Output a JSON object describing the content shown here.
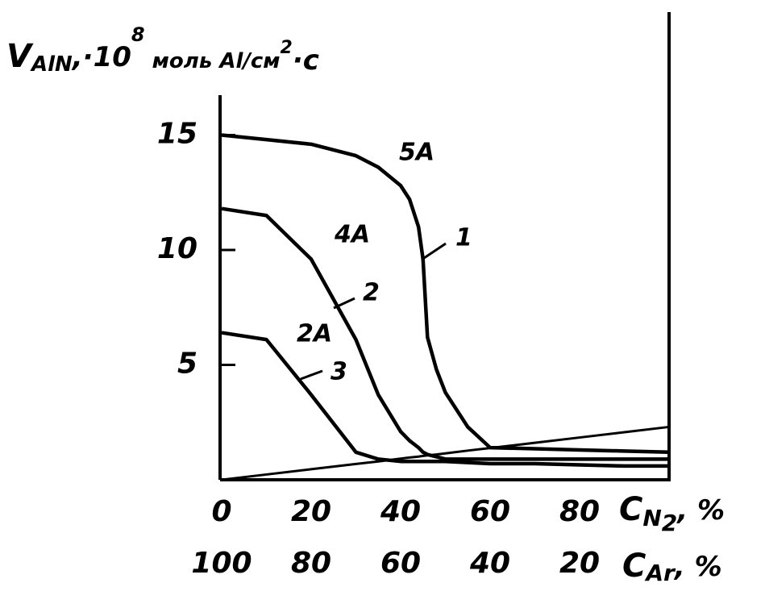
{
  "chart_data": {
    "type": "line",
    "y_label": [
      "V",
      "AlN",
      ",·10",
      "8",
      " моль Al/см",
      "2",
      "·с"
    ],
    "x_label": [
      "C",
      "N",
      "2",
      ", %"
    ],
    "x2_label": [
      "C",
      "Ar",
      ", %"
    ],
    "x": [
      0,
      10,
      20,
      30,
      35,
      40,
      42,
      44,
      45,
      46,
      48,
      50,
      55,
      60,
      70,
      80,
      90,
      100
    ],
    "series": [
      {
        "name": "1",
        "current": "5A",
        "color": "#000000",
        "values": [
          15,
          14.8,
          14.6,
          14.1,
          13.6,
          12.8,
          12.2,
          11.0,
          9.6,
          6.2,
          4.8,
          3.8,
          2.3,
          1.4,
          1.35,
          1.3,
          1.25,
          1.2
        ]
      },
      {
        "name": "2",
        "current": "4A",
        "color": "#000000",
        "values": [
          11.8,
          11.5,
          9.6,
          6.1,
          3.7,
          2.1,
          1.7,
          1.4,
          1.2,
          1.1,
          1.0,
          0.9,
          0.9,
          0.9,
          0.9,
          0.9,
          0.9,
          0.9
        ]
      },
      {
        "name": "3",
        "current": "2A",
        "color": "#000000",
        "values": [
          6.4,
          6.1,
          3.7,
          1.2,
          0.9,
          0.8,
          0.8,
          0.8,
          0.8,
          0.8,
          0.8,
          0.8,
          0.75,
          0.7,
          0.7,
          0.65,
          0.6,
          0.6
        ]
      },
      {
        "color": "#000000",
        "values": [
          0,
          0.23,
          0.46,
          0.69,
          0.8,
          0.92,
          0.97,
          1.01,
          1.04,
          1.06,
          1.1,
          1.15,
          1.27,
          1.38,
          1.61,
          1.84,
          2.07,
          2.3
        ]
      }
    ],
    "xlim": [
      0,
      100
    ],
    "xticks": [
      0,
      20,
      40,
      60,
      80
    ],
    "x2lim": [
      100,
      0
    ],
    "x2ticks": [
      100,
      80,
      60,
      40,
      20
    ],
    "ylim": [
      0,
      16.7
    ],
    "yticks": [
      5,
      10,
      15
    ],
    "grid": false
  }
}
